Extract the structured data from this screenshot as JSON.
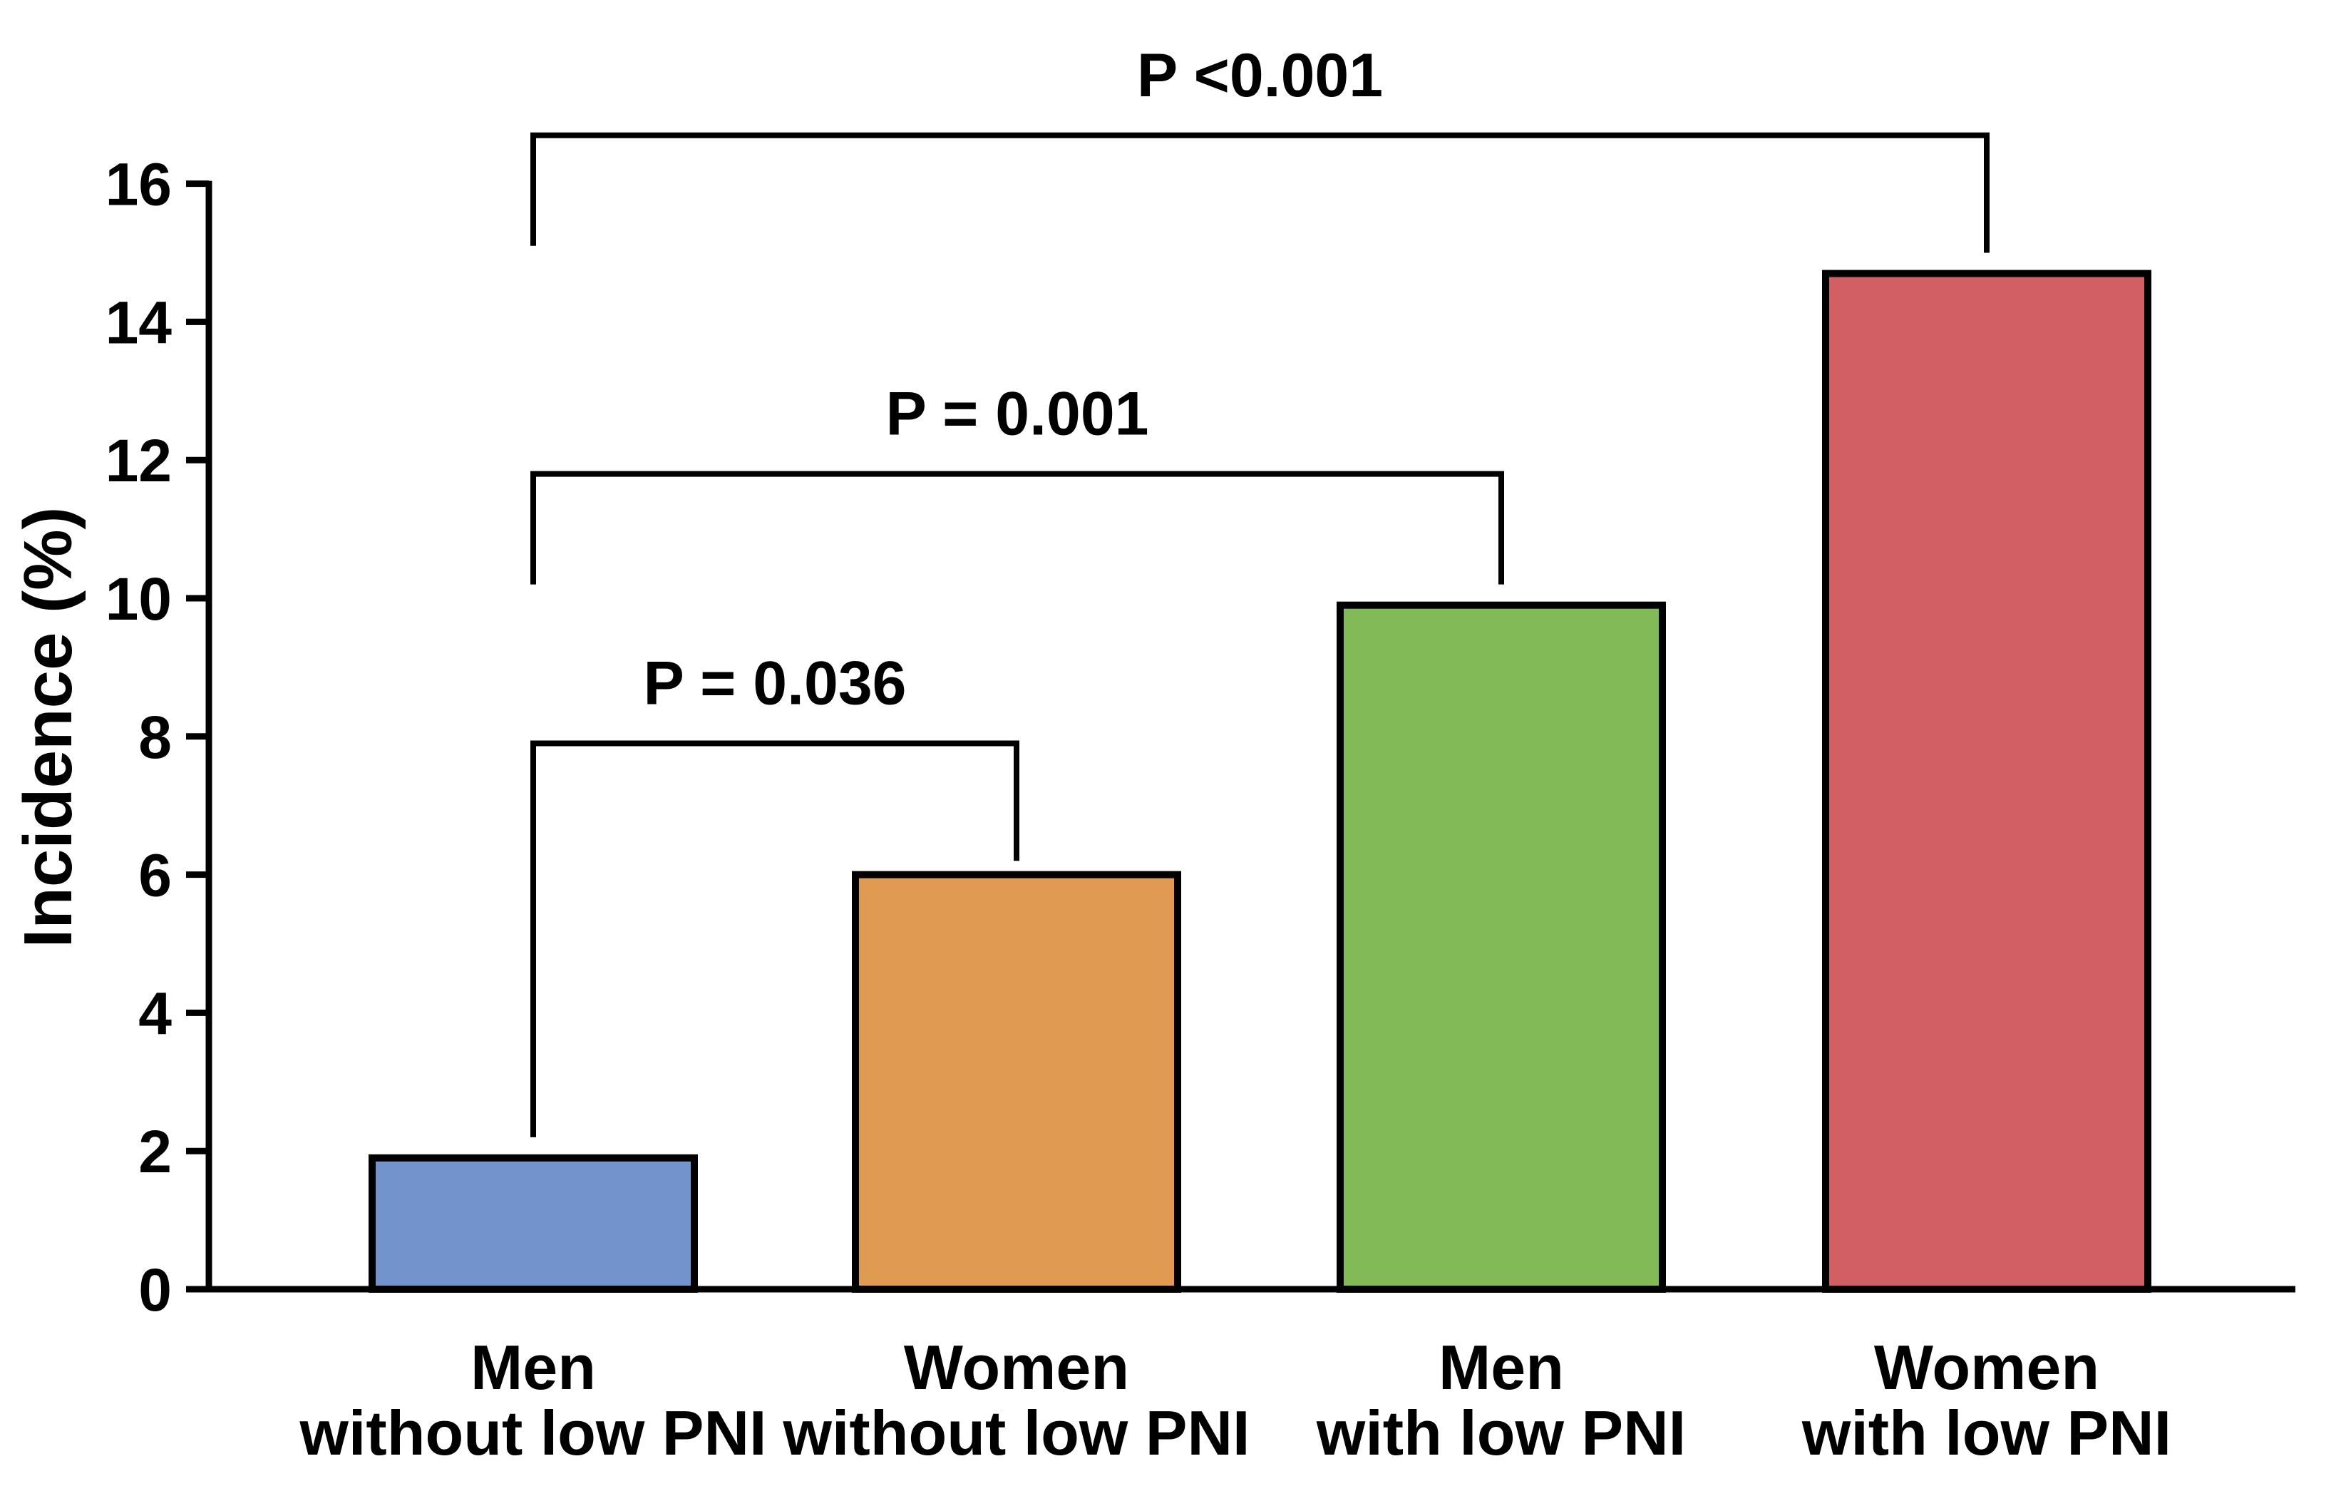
{
  "figure": {
    "background_color": "#ffffff",
    "axis_color": "#000000"
  },
  "chart_data": {
    "type": "bar",
    "title": "",
    "xlabel": "",
    "ylabel": "Incidence (%)",
    "ylim": [
      0,
      16
    ],
    "yticks": [
      0,
      2,
      4,
      6,
      8,
      10,
      12,
      14,
      16
    ],
    "grid": false,
    "legend": "none",
    "categories": [
      "Men\nwithout low PNI",
      "Women\nwithout low PNI",
      "Men\nwith low PNI",
      "Women\nwith low PNI"
    ],
    "values": [
      1.9,
      6.0,
      9.9,
      14.7
    ],
    "bar_colors": [
      "#7293cb",
      "#e09a51",
      "#83ba58",
      "#d15f63"
    ],
    "bar_edge_color": "#000000",
    "comparisons": [
      {
        "between": [
          0,
          1
        ],
        "label": "P = 0.036",
        "bracket_y": 7.9,
        "left_tip_y": 2.2,
        "right_tip_y": 6.2
      },
      {
        "between": [
          0,
          2
        ],
        "label": "P = 0.001",
        "bracket_y": 11.8,
        "left_tip_y": 10.2,
        "right_tip_y": 10.2
      },
      {
        "between": [
          0,
          3
        ],
        "label": "P <0.001",
        "bracket_y": 16.7,
        "left_tip_y": 15.1,
        "right_tip_y": 15.0
      }
    ]
  }
}
